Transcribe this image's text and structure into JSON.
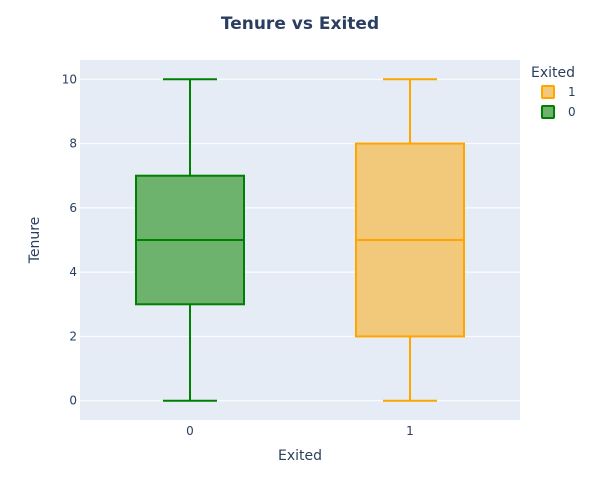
{
  "chart_data": {
    "type": "box",
    "title": "Tenure vs Exited",
    "xlabel": "Exited",
    "ylabel": "Tenure",
    "categories": [
      "0",
      "1"
    ],
    "ylim": [
      -0.6,
      10.6
    ],
    "yticks": [
      0,
      2,
      4,
      6,
      8,
      10
    ],
    "grid": true,
    "legend": {
      "title": "Exited",
      "placement": "top-right",
      "order": [
        "1",
        "0"
      ]
    },
    "series": [
      {
        "name": "0",
        "category": "0",
        "min": 0,
        "q1": 3,
        "median": 5,
        "q3": 7,
        "max": 10,
        "color": "#008000",
        "fill": "#6db36d"
      },
      {
        "name": "1",
        "category": "1",
        "min": 0,
        "q1": 2,
        "median": 5,
        "q3": 8,
        "max": 10,
        "color": "#ffa500",
        "fill": "#f2c97a"
      }
    ]
  },
  "colors": {
    "plot_background": "#e5ecf6",
    "grid": "#ffffff",
    "text": "#2a3f5f"
  }
}
